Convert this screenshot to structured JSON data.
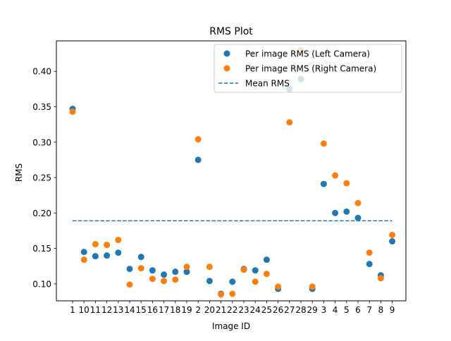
{
  "chart_data": {
    "type": "scatter",
    "title": "RMS Plot",
    "xlabel": "Image ID",
    "ylabel": "RMS",
    "categories": [
      "1",
      "10",
      "11",
      "12",
      "13",
      "14",
      "15",
      "16",
      "17",
      "18",
      "19",
      "2",
      "20",
      "21",
      "22",
      "23",
      "24",
      "25",
      "26",
      "27",
      "28",
      "29",
      "3",
      "4",
      "5",
      "6",
      "7",
      "8",
      "9"
    ],
    "ylim": [
      0.076,
      0.443
    ],
    "yticks": [
      0.1,
      0.15,
      0.2,
      0.25,
      0.3,
      0.35,
      0.4
    ],
    "ytick_labels": [
      "0.10",
      "0.15",
      "0.20",
      "0.25",
      "0.30",
      "0.35",
      "0.40"
    ],
    "grid": false,
    "legend_position": "top-right",
    "series": [
      {
        "name": "Per image RMS (Left Camera)",
        "color": "#1f77b4",
        "marker": "circle",
        "values": [
          0.347,
          0.145,
          0.139,
          0.14,
          0.144,
          0.121,
          0.138,
          0.119,
          0.113,
          0.117,
          0.117,
          0.275,
          0.104,
          0.086,
          0.103,
          0.121,
          0.119,
          0.134,
          0.093,
          0.375,
          0.389,
          0.093,
          0.241,
          0.2,
          0.202,
          0.193,
          0.128,
          0.112,
          0.16
        ]
      },
      {
        "name": "Per image RMS (Right Camera)",
        "color": "#ff7f0e",
        "marker": "circle",
        "values": [
          0.343,
          0.134,
          0.156,
          0.155,
          0.162,
          0.099,
          0.122,
          0.107,
          0.104,
          0.106,
          0.124,
          0.304,
          0.124,
          0.085,
          0.086,
          0.12,
          0.103,
          0.114,
          0.096,
          0.328,
          0.43,
          0.096,
          0.298,
          0.253,
          0.242,
          0.214,
          0.144,
          0.108,
          0.169
        ]
      },
      {
        "name": "Mean RMS",
        "color": "#1f77b4",
        "style": "dashed-line",
        "value": 0.189
      }
    ]
  }
}
